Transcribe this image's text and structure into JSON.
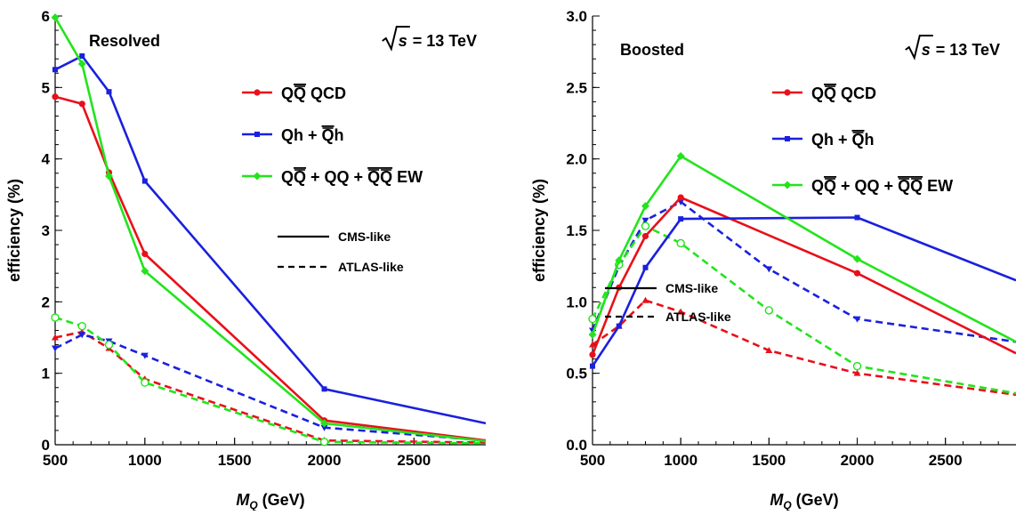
{
  "chart_data": [
    {
      "type": "line",
      "panel_label": "Resolved",
      "energy_label": "√s = 13 TeV",
      "xlabel": "M_Q (GeV)",
      "ylabel": "efficiency (%)",
      "xlim": [
        500,
        2900
      ],
      "ylim": [
        0,
        6
      ],
      "xticks": [
        500,
        1000,
        1500,
        2000,
        2500
      ],
      "yticks": [
        0,
        1,
        2,
        3,
        4,
        5,
        6
      ],
      "grid": false,
      "legend_placement": "top-right",
      "series": [
        {
          "name": "QQ̄ QCD",
          "color": "#e8101a",
          "style": "CMS-like",
          "marker": "circle",
          "x": [
            500,
            650,
            800,
            1000,
            2000,
            2900
          ],
          "y": [
            4.87,
            4.77,
            3.81,
            2.67,
            0.34,
            0.06
          ]
        },
        {
          "name": "Qh + Q̄h",
          "color": "#1a20dd",
          "style": "CMS-like",
          "marker": "square",
          "x": [
            500,
            650,
            800,
            1000,
            2000,
            2900
          ],
          "y": [
            5.25,
            5.44,
            4.94,
            3.69,
            0.78,
            0.3
          ]
        },
        {
          "name": "QQ̄ + QQ + Q̄Q̄ EW",
          "color": "#22e41c",
          "style": "CMS-like",
          "marker": "diamond",
          "x": [
            500,
            650,
            800,
            1000,
            2000,
            2900
          ],
          "y": [
            5.98,
            5.33,
            3.76,
            2.43,
            0.3,
            0.05
          ]
        },
        {
          "name": "QQ̄ QCD",
          "color": "#e8101a",
          "style": "ATLAS-like",
          "marker": "triangle-up",
          "x": [
            500,
            650,
            800,
            1000,
            2000,
            2900
          ],
          "y": [
            1.5,
            1.58,
            1.35,
            0.92,
            0.06,
            0.03
          ]
        },
        {
          "name": "Qh + Q̄h",
          "color": "#1a20dd",
          "style": "ATLAS-like",
          "marker": "triangle-down",
          "x": [
            500,
            650,
            800,
            1000,
            2000,
            2900
          ],
          "y": [
            1.35,
            1.54,
            1.45,
            1.25,
            0.24,
            0.06
          ]
        },
        {
          "name": "QQ̄ + QQ + Q̄Q̄ EW",
          "color": "#22e41c",
          "style": "ATLAS-like",
          "marker": "open-circle",
          "x": [
            500,
            650,
            800,
            1000,
            2000,
            2900
          ],
          "y": [
            1.78,
            1.66,
            1.4,
            0.87,
            0.04,
            0.02
          ]
        }
      ],
      "legend": [
        {
          "text": "QQ̄ QCD",
          "color": "#e8101a",
          "marker": "circle"
        },
        {
          "text": "Qh + Q̄h",
          "color": "#1a20dd",
          "marker": "square"
        },
        {
          "text": "QQ̄ + QQ + Q̄Q̄ EW",
          "color": "#22e41c",
          "marker": "diamond"
        }
      ],
      "style_legend": [
        {
          "text": "CMS-like",
          "dash": "solid"
        },
        {
          "text": "ATLAS-like",
          "dash": "dashed"
        }
      ]
    },
    {
      "type": "line",
      "panel_label": "Boosted",
      "energy_label": "√s = 13 TeV",
      "xlabel": "M_Q (GeV)",
      "ylabel": "efficiency (%)",
      "xlim": [
        500,
        2900
      ],
      "ylim": [
        0,
        3
      ],
      "xticks": [
        500,
        1000,
        1500,
        2000,
        2500
      ],
      "yticks": [
        0.0,
        0.5,
        1.0,
        1.5,
        2.0,
        2.5,
        3.0
      ],
      "grid": false,
      "legend_placement": "top-right",
      "series": [
        {
          "name": "QQ̄ QCD",
          "color": "#e8101a",
          "style": "CMS-like",
          "marker": "circle",
          "x": [
            500,
            650,
            800,
            1000,
            2000,
            2900
          ],
          "y": [
            0.63,
            1.1,
            1.46,
            1.73,
            1.2,
            0.64
          ]
        },
        {
          "name": "Qh + Q̄h",
          "color": "#1a20dd",
          "style": "CMS-like",
          "marker": "square",
          "x": [
            500,
            650,
            800,
            1000,
            2000,
            2900
          ],
          "y": [
            0.55,
            0.83,
            1.24,
            1.58,
            1.59,
            1.15
          ]
        },
        {
          "name": "QQ̄ + QQ + Q̄Q̄ EW",
          "color": "#22e41c",
          "style": "CMS-like",
          "marker": "diamond",
          "x": [
            500,
            650,
            800,
            1000,
            2000,
            2900
          ],
          "y": [
            0.77,
            1.29,
            1.67,
            2.02,
            1.3,
            0.72
          ]
        },
        {
          "name": "QQ̄ QCD",
          "color": "#e8101a",
          "style": "ATLAS-like",
          "marker": "triangle-up",
          "x": [
            500,
            650,
            800,
            1000,
            1500,
            2000,
            2900
          ],
          "y": [
            0.7,
            0.83,
            1.01,
            0.93,
            0.66,
            0.5,
            0.35
          ]
        },
        {
          "name": "Qh + Q̄h",
          "color": "#1a20dd",
          "style": "ATLAS-like",
          "marker": "triangle-down",
          "x": [
            500,
            650,
            800,
            1000,
            1500,
            2000,
            2900
          ],
          "y": [
            0.8,
            1.25,
            1.57,
            1.7,
            1.23,
            0.88,
            0.72
          ]
        },
        {
          "name": "QQ̄ + QQ + Q̄Q̄ EW",
          "color": "#22e41c",
          "style": "ATLAS-like",
          "marker": "open-circle",
          "x": [
            500,
            650,
            800,
            1000,
            1500,
            2000,
            2900
          ],
          "y": [
            0.88,
            1.26,
            1.53,
            1.41,
            0.94,
            0.55,
            0.36
          ]
        }
      ],
      "legend": [
        {
          "text": "QQ̄ QCD",
          "color": "#e8101a",
          "marker": "circle"
        },
        {
          "text": "Qh + Q̄h",
          "color": "#1a20dd",
          "marker": "square"
        },
        {
          "text": "QQ̄ + QQ + Q̄Q̄ EW",
          "color": "#22e41c",
          "marker": "diamond"
        }
      ],
      "style_legend": [
        {
          "text": "CMS-like",
          "dash": "solid"
        },
        {
          "text": "ATLAS-like",
          "dash": "dashed"
        }
      ]
    }
  ]
}
